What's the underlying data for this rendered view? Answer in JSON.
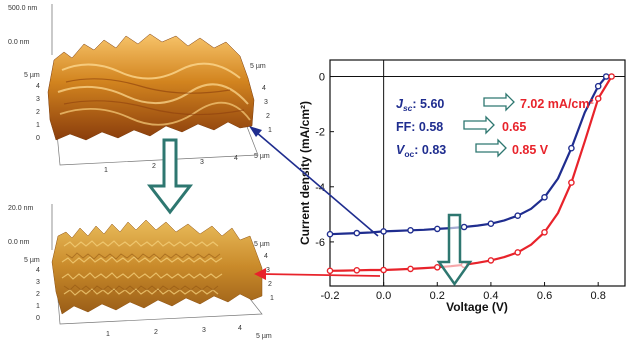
{
  "afm_top": {
    "height_max": "500.0 nm",
    "height_min": "0.0 nm",
    "scale_unit_left": "5 µm",
    "scale_unit_right": "5 µm",
    "scale_unit_front": "5 µm",
    "side_ticks": [
      "4",
      "3",
      "2",
      "1",
      "0"
    ],
    "right_ticks": [
      "4",
      "3",
      "2",
      "1"
    ],
    "front_ticks": [
      "1",
      "2",
      "3",
      "4"
    ]
  },
  "afm_bottom": {
    "height_max": "20.0 nm",
    "height_min": "0.0 nm",
    "scale_unit_left": "5 µm",
    "scale_unit_right": "5 µm",
    "scale_unit_front": "5 µm",
    "side_ticks": [
      "4",
      "3",
      "2",
      "1",
      "0"
    ],
    "right_ticks": [
      "4",
      "3",
      "2",
      "1"
    ],
    "front_ticks": [
      "1",
      "2",
      "3",
      "4"
    ]
  },
  "annotations": {
    "jsc": {
      "label": "J",
      "sub": "sc",
      "before": ": 5.60",
      "after": "7.02 mA/cm²"
    },
    "ff": {
      "label": "FF",
      "before": ": 0.58",
      "after": "0.65"
    },
    "voc": {
      "label": "V",
      "sub": "oc",
      "before": ": 0.83",
      "after": "0.85 V"
    }
  },
  "colors": {
    "blue": "#1f2d8f",
    "red": "#e8232b",
    "teal": "#2e7770"
  },
  "chart_data": {
    "type": "line",
    "xlabel": "Voltage (V)",
    "ylabel": "Current density (mA/cm²)",
    "xlim": [
      -0.2,
      0.9
    ],
    "ylim": [
      -7.6,
      0.6
    ],
    "xticks": [
      -0.2,
      0.0,
      0.2,
      0.4,
      0.6,
      0.8
    ],
    "xtick_labels": [
      "-0.2",
      "0.0",
      "0.2",
      "0.4",
      "0.6",
      "0.8"
    ],
    "yticks": [
      0,
      -2,
      -4,
      -6
    ],
    "ytick_labels": [
      "0",
      "-2",
      "-4",
      "-6"
    ],
    "grid": false,
    "series": [
      {
        "color": "#1f2d8f",
        "x": [
          -0.2,
          -0.15,
          -0.1,
          -0.05,
          0.0,
          0.05,
          0.1,
          0.15,
          0.2,
          0.25,
          0.3,
          0.35,
          0.4,
          0.45,
          0.5,
          0.55,
          0.6,
          0.65,
          0.7,
          0.75,
          0.8,
          0.83
        ],
        "y": [
          -5.72,
          -5.7,
          -5.68,
          -5.66,
          -5.62,
          -5.6,
          -5.58,
          -5.56,
          -5.53,
          -5.5,
          -5.46,
          -5.41,
          -5.34,
          -5.22,
          -5.05,
          -4.8,
          -4.38,
          -3.7,
          -2.6,
          -1.3,
          -0.35,
          0.0
        ]
      },
      {
        "color": "#e8232b",
        "x": [
          -0.2,
          -0.15,
          -0.1,
          -0.05,
          0.0,
          0.05,
          0.1,
          0.15,
          0.2,
          0.25,
          0.3,
          0.35,
          0.4,
          0.45,
          0.5,
          0.55,
          0.6,
          0.65,
          0.7,
          0.75,
          0.8,
          0.85
        ],
        "y": [
          -7.05,
          -7.04,
          -7.03,
          -7.02,
          -7.02,
          -7.0,
          -6.98,
          -6.95,
          -6.92,
          -6.88,
          -6.83,
          -6.76,
          -6.67,
          -6.55,
          -6.38,
          -6.1,
          -5.65,
          -4.95,
          -3.85,
          -2.35,
          -0.8,
          0.0
        ]
      }
    ]
  }
}
